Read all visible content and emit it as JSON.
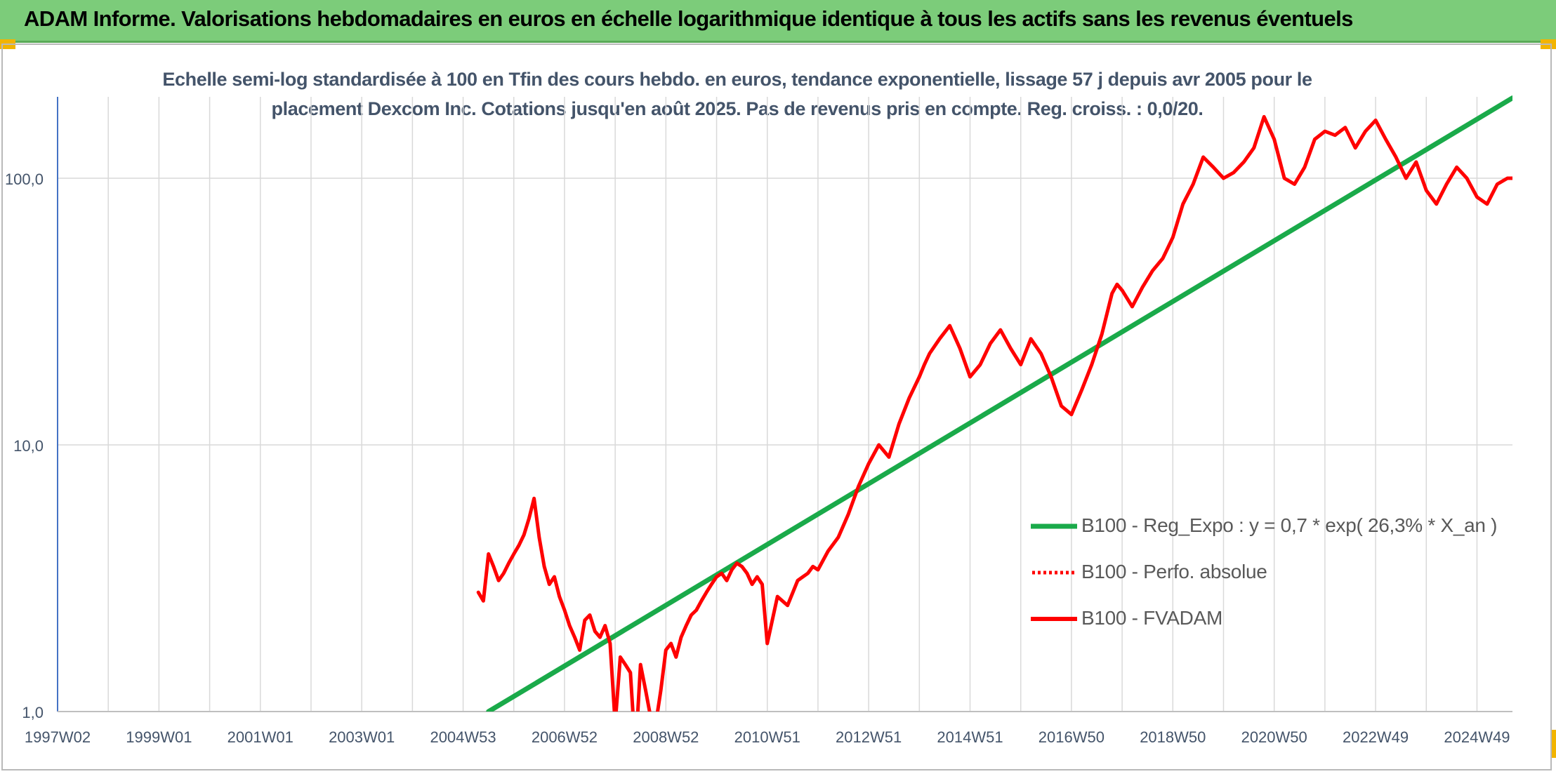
{
  "header": {
    "title": "ADAM Informe. Valorisations hebdomadaires en euros en échelle logarithmique identique à tous les actifs sans les revenus éventuels"
  },
  "chart_data": {
    "type": "line",
    "title_lines": [
      "Echelle semi-log standardisée à 100 en Tfin des cours hebdo. en euros, tendance exponentielle, lissage 57 j depuis avr 2005 pour le",
      "placement Dexcom Inc. Cotations jusqu'en août 2025. Pas de revenus pris en compte. Reg. croiss. : 0,0/20."
    ],
    "y_scale": "log",
    "ylim": [
      1,
      200
    ],
    "xlim": [
      1997.0,
      2025.7
    ],
    "y_ticks": [
      {
        "label": "1,0",
        "value": 1
      },
      {
        "label": "10,0",
        "value": 10
      },
      {
        "label": "100,0",
        "value": 100
      }
    ],
    "x_ticks": [
      {
        "label": "1997W02",
        "value": 1997.0
      },
      {
        "label": "1999W01",
        "value": 1999.0
      },
      {
        "label": "2001W01",
        "value": 2001.0
      },
      {
        "label": "2003W01",
        "value": 2003.0
      },
      {
        "label": "2004W53",
        "value": 2005.0
      },
      {
        "label": "2006W52",
        "value": 2007.0
      },
      {
        "label": "2008W52",
        "value": 2009.0
      },
      {
        "label": "2010W51",
        "value": 2011.0
      },
      {
        "label": "2012W51",
        "value": 2013.0
      },
      {
        "label": "2014W51",
        "value": 2015.0
      },
      {
        "label": "2016W50",
        "value": 2017.0
      },
      {
        "label": "2018W50",
        "value": 2019.0
      },
      {
        "label": "2020W50",
        "value": 2021.0
      },
      {
        "label": "2022W49",
        "value": 2023.0
      },
      {
        "label": "2024W49",
        "value": 2025.0
      }
    ],
    "grid": true,
    "legend_position": "bottom-right",
    "series": [
      {
        "name": "B100 - Reg_Expo : y = 0,7 * exp( 26,3% *  X_an )",
        "color": "#1aaa4a",
        "style": "solid",
        "x": [
          2005.5,
          2025.7
        ],
        "y": [
          1.0,
          200
        ]
      },
      {
        "name": "B100 - Perfo. absolue",
        "color": "#ff0000",
        "style": "dotted",
        "x": [],
        "y": []
      },
      {
        "name": "B100 - FVADAM",
        "color": "#ff0000",
        "style": "solid",
        "x": [
          2005.3,
          2005.4,
          2005.5,
          2005.6,
          2005.7,
          2005.8,
          2005.9,
          2006.0,
          2006.1,
          2006.2,
          2006.3,
          2006.4,
          2006.5,
          2006.6,
          2006.7,
          2006.8,
          2006.9,
          2007.0,
          2007.1,
          2007.2,
          2007.3,
          2007.4,
          2007.5,
          2007.6,
          2007.7,
          2007.8,
          2007.9,
          2008.0,
          2008.1,
          2008.2,
          2008.3,
          2008.4,
          2008.5,
          2008.6,
          2008.7,
          2008.8,
          2008.9,
          2009.0,
          2009.1,
          2009.2,
          2009.3,
          2009.4,
          2009.5,
          2009.6,
          2009.7,
          2009.8,
          2009.9,
          2010.0,
          2010.1,
          2010.2,
          2010.3,
          2010.4,
          2010.5,
          2010.6,
          2010.7,
          2010.8,
          2010.9,
          2011.0,
          2011.2,
          2011.4,
          2011.6,
          2011.8,
          2011.9,
          2012.0,
          2012.2,
          2012.4,
          2012.6,
          2012.8,
          2013.0,
          2013.2,
          2013.4,
          2013.6,
          2013.8,
          2014.0,
          2014.1,
          2014.2,
          2014.4,
          2014.6,
          2014.8,
          2015.0,
          2015.2,
          2015.4,
          2015.6,
          2015.8,
          2016.0,
          2016.2,
          2016.4,
          2016.6,
          2016.8,
          2017.0,
          2017.2,
          2017.4,
          2017.6,
          2017.8,
          2017.9,
          2018.0,
          2018.2,
          2018.4,
          2018.6,
          2018.8,
          2019.0,
          2019.2,
          2019.4,
          2019.6,
          2019.8,
          2020.0,
          2020.2,
          2020.4,
          2020.6,
          2020.8,
          2021.0,
          2021.2,
          2021.4,
          2021.6,
          2021.8,
          2022.0,
          2022.2,
          2022.4,
          2022.6,
          2022.8,
          2023.0,
          2023.2,
          2023.4,
          2023.6,
          2023.8,
          2024.0,
          2024.2,
          2024.4,
          2024.6,
          2024.8,
          2025.0,
          2025.2,
          2025.4,
          2025.6,
          2025.7
        ],
        "y": [
          2.8,
          2.6,
          3.9,
          3.5,
          3.1,
          3.3,
          3.6,
          3.9,
          4.2,
          4.6,
          5.3,
          6.3,
          4.5,
          3.5,
          3.0,
          3.2,
          2.7,
          2.4,
          2.1,
          1.9,
          1.7,
          2.2,
          2.3,
          2.0,
          1.9,
          2.1,
          1.8,
          0.9,
          1.6,
          1.5,
          1.4,
          0.7,
          1.5,
          1.2,
          0.95,
          0.9,
          1.2,
          1.7,
          1.8,
          1.6,
          1.9,
          2.1,
          2.3,
          2.4,
          2.6,
          2.8,
          3.0,
          3.2,
          3.3,
          3.1,
          3.4,
          3.6,
          3.5,
          3.3,
          3.0,
          3.2,
          3.0,
          1.8,
          2.7,
          2.5,
          3.1,
          3.3,
          3.5,
          3.4,
          4.0,
          4.5,
          5.5,
          7.0,
          8.5,
          10.0,
          9.0,
          12.0,
          15.0,
          18.0,
          20.0,
          22.0,
          25.0,
          28.0,
          23.0,
          18.0,
          20.0,
          24.0,
          27.0,
          23.0,
          20.0,
          25.0,
          22.0,
          18.0,
          14.0,
          13.0,
          16.0,
          20.0,
          26.0,
          37.0,
          40.0,
          38.0,
          33.0,
          39.0,
          45.0,
          50.0,
          60.0,
          80.0,
          95.0,
          120.0,
          110.0,
          100.0,
          105.0,
          115.0,
          130.0,
          170.0,
          140.0,
          100.0,
          95.0,
          110.0,
          140.0,
          150.0,
          145.0,
          155.0,
          130.0,
          150.0,
          165.0,
          140.0,
          120.0,
          100.0,
          115.0,
          90.0,
          80.0,
          95.0,
          110.0,
          100.0,
          85.0,
          80.0,
          95.0,
          100.0,
          100.0
        ]
      }
    ]
  }
}
